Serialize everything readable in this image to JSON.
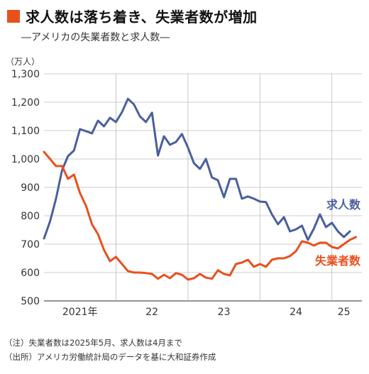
{
  "header": {
    "title": "求人数は落ち着き、失業者数が増加",
    "subtitle": "―アメリカの失業者数と求人数―",
    "unit": "（万人）"
  },
  "notes": {
    "note1": "（注）失業者数は2025年5月、求人数は4月まで",
    "note2": "（出所）アメリカ労働統計局のデータを基に大和証券作成"
  },
  "colors": {
    "openings": "#4a5f9c",
    "unemployed": "#e8501e",
    "accent": "#e8501e"
  },
  "chart_data": {
    "type": "line",
    "title": "求人数は落ち着き、失業者数が増加",
    "subtitle": "―アメリカの失業者数と求人数―",
    "ylabel": "（万人）",
    "ylim": [
      500,
      1300
    ],
    "yticks": [
      500,
      600,
      700,
      800,
      900,
      1000,
      1100,
      1200,
      1300
    ],
    "ytick_labels": [
      "500",
      "600",
      "700",
      "800",
      "900",
      "1,000",
      "1,100",
      "1,200",
      "1,300"
    ],
    "xlim": [
      "2021-01",
      "2025-06"
    ],
    "xtick_labels": [
      {
        "label": "2021年",
        "month": "2021-07"
      },
      {
        "label": "22",
        "month": "2022-07"
      },
      {
        "label": "23",
        "month": "2023-07"
      },
      {
        "label": "24",
        "month": "2024-07"
      },
      {
        "label": "25",
        "month": "2025-03"
      }
    ],
    "year_boundaries": [
      "2022-01",
      "2023-01",
      "2024-01",
      "2025-01"
    ],
    "grid": true,
    "series": [
      {
        "name": "求人数",
        "color": "#4a5f9c",
        "start": "2021-01",
        "end": "2025-04",
        "values": [
          720,
          780,
          860,
          960,
          1010,
          1030,
          1105,
          1098,
          1090,
          1135,
          1115,
          1145,
          1130,
          1165,
          1212,
          1192,
          1150,
          1130,
          1163,
          1012,
          1080,
          1050,
          1060,
          1088,
          1040,
          985,
          965,
          1000,
          935,
          925,
          865,
          930,
          930,
          860,
          868,
          860,
          850,
          848,
          805,
          770,
          795,
          745,
          752,
          765,
          715,
          755,
          805,
          760,
          775,
          745,
          725,
          745
        ]
      },
      {
        "name": "失業者数",
        "color": "#e8501e",
        "start": "2021-01",
        "end": "2025-05",
        "values": [
          1025,
          1000,
          975,
          975,
          930,
          945,
          880,
          835,
          770,
          735,
          680,
          640,
          655,
          630,
          605,
          600,
          600,
          598,
          595,
          578,
          592,
          580,
          598,
          592,
          575,
          580,
          595,
          582,
          578,
          608,
          595,
          590,
          630,
          635,
          645,
          620,
          630,
          620,
          645,
          650,
          650,
          658,
          675,
          710,
          705,
          695,
          705,
          705,
          690,
          685,
          700,
          715,
          725
        ]
      }
    ]
  }
}
